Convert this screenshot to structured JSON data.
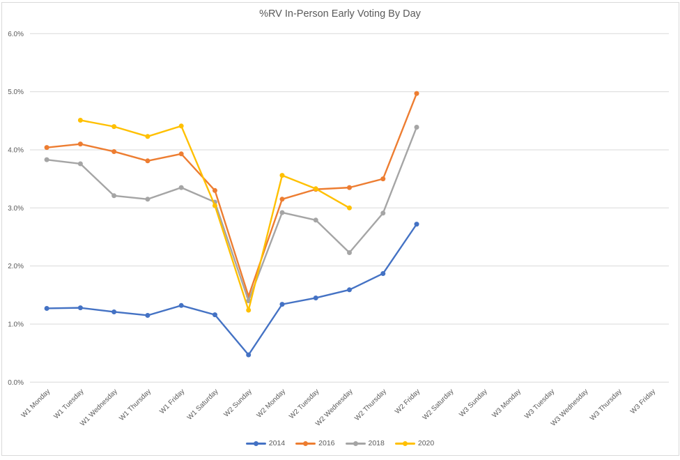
{
  "chart_data": {
    "type": "line",
    "title": "%RV In-Person Early Voting By Day",
    "categories": [
      "W1 Monday",
      "W1 Tuesday",
      "W1 Wednesday",
      "W1 Thursday",
      "W1 Friday",
      "W1 Saturday",
      "W2 Sunday",
      "W2 Monday",
      "W2 Tuesday",
      "W2 Wednesday",
      "W2 Thursday",
      "W2 Friday",
      "W2 Saturday",
      "W3 Sunday",
      "W3 Monday",
      "W3 Tuesday",
      "W3 Wednesday",
      "W3 Thursday",
      "W3 Friday"
    ],
    "series": [
      {
        "name": "2014",
        "color": "#4472C4",
        "values": [
          1.27,
          1.28,
          1.21,
          1.15,
          1.32,
          1.16,
          0.47,
          1.34,
          1.45,
          1.59,
          1.87,
          2.72,
          null,
          null,
          null,
          null,
          null,
          null,
          null
        ]
      },
      {
        "name": "2016",
        "color": "#ED7D31",
        "values": [
          4.04,
          4.1,
          3.97,
          3.81,
          3.93,
          3.3,
          1.48,
          3.15,
          3.32,
          3.35,
          3.5,
          4.97,
          null,
          null,
          null,
          null,
          null,
          null,
          null
        ]
      },
      {
        "name": "2018",
        "color": "#A5A5A5",
        "values": [
          3.83,
          3.76,
          3.21,
          3.15,
          3.35,
          3.1,
          1.4,
          2.92,
          2.79,
          2.23,
          2.91,
          4.39,
          null,
          null,
          null,
          null,
          null,
          null,
          null
        ]
      },
      {
        "name": "2020",
        "color": "#FFC000",
        "values": [
          null,
          4.51,
          4.4,
          4.23,
          4.41,
          3.04,
          1.24,
          3.56,
          3.33,
          3.0,
          null,
          null,
          null,
          null,
          null,
          null,
          null,
          null,
          null
        ]
      }
    ],
    "xlabel": "",
    "ylabel": "",
    "y_axis": {
      "ticks": [
        "0.0%",
        "1.0%",
        "2.0%",
        "3.0%",
        "4.0%",
        "5.0%",
        "6.0%"
      ],
      "min": 0,
      "max": 6,
      "step": 1,
      "format": "percent"
    },
    "ylim": [
      0,
      6
    ],
    "grid": true,
    "gridline_color": "#D9D9D9",
    "axis_text_color": "#595959",
    "legend": {
      "position": "bottom",
      "entries": [
        "2014",
        "2016",
        "2018",
        "2020"
      ]
    }
  }
}
